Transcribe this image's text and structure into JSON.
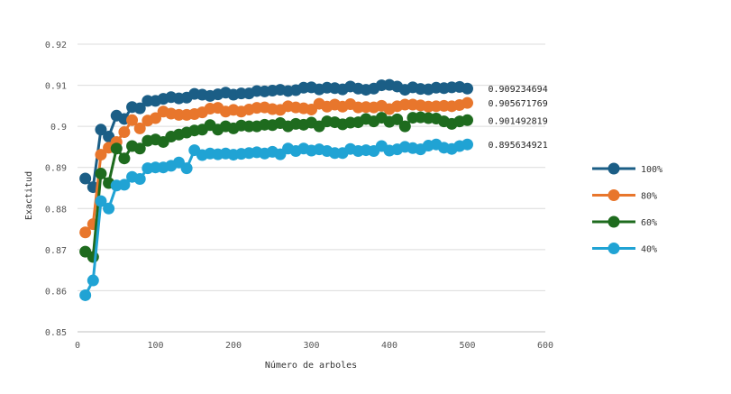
{
  "chart_data": {
    "type": "line",
    "title": "",
    "xlabel": "Número de arboles",
    "ylabel": "Exactitud",
    "xlim": [
      0,
      600
    ],
    "ylim": [
      0.85,
      0.92
    ],
    "x_ticks": [
      "0",
      "100",
      "200",
      "300",
      "400",
      "500",
      "600"
    ],
    "y_ticks": [
      "0.85",
      "0.86",
      "0.87",
      "0.88",
      "0.89",
      "0.9",
      "0.91",
      "0.92"
    ],
    "grid": "horizontal",
    "legend_position": "right",
    "x": [
      10,
      20,
      30,
      40,
      50,
      60,
      70,
      80,
      90,
      100,
      110,
      120,
      130,
      140,
      150,
      160,
      170,
      180,
      190,
      200,
      210,
      220,
      230,
      240,
      250,
      260,
      270,
      280,
      290,
      300,
      310,
      320,
      330,
      340,
      350,
      360,
      370,
      380,
      390,
      400,
      410,
      420,
      430,
      440,
      450,
      460,
      470,
      480,
      490,
      500
    ],
    "series": [
      {
        "name": "100%",
        "color": "#1b5e86",
        "end_label": "0.909234694",
        "values": [
          0.8873,
          0.8852,
          0.8992,
          0.8975,
          0.9026,
          0.9018,
          0.9047,
          0.9044,
          0.9062,
          0.9062,
          0.9067,
          0.9071,
          0.9068,
          0.907,
          0.9079,
          0.9077,
          0.9074,
          0.9078,
          0.9082,
          0.9077,
          0.908,
          0.908,
          0.9086,
          0.9085,
          0.9087,
          0.9089,
          0.9086,
          0.9088,
          0.9094,
          0.9095,
          0.909,
          0.9094,
          0.9093,
          0.909,
          0.9097,
          0.9092,
          0.9089,
          0.9092,
          0.91,
          0.9101,
          0.9097,
          0.9089,
          0.9095,
          0.9091,
          0.909,
          0.9094,
          0.9093,
          0.9095,
          0.9096,
          0.9092
        ]
      },
      {
        "name": "80%",
        "color": "#e8762c",
        "end_label": "0.905671769",
        "values": [
          0.8742,
          0.8762,
          0.8931,
          0.8948,
          0.8962,
          0.8986,
          0.9015,
          0.8995,
          0.9014,
          0.902,
          0.9036,
          0.9031,
          0.9028,
          0.9028,
          0.903,
          0.9034,
          0.9043,
          0.9045,
          0.9036,
          0.904,
          0.9036,
          0.9041,
          0.9045,
          0.9046,
          0.9042,
          0.904,
          0.9049,
          0.9046,
          0.9044,
          0.9041,
          0.9055,
          0.9048,
          0.9053,
          0.9048,
          0.9054,
          0.9046,
          0.9047,
          0.9046,
          0.905,
          0.9042,
          0.9049,
          0.9053,
          0.9053,
          0.9051,
          0.9048,
          0.9049,
          0.905,
          0.9049,
          0.9052,
          0.9057
        ]
      },
      {
        "name": "60%",
        "color": "#1e6b1e",
        "end_label": "0.901492819",
        "values": [
          0.8695,
          0.8682,
          0.8885,
          0.8862,
          0.8946,
          0.8922,
          0.8952,
          0.8946,
          0.8965,
          0.8968,
          0.8962,
          0.8975,
          0.898,
          0.8985,
          0.899,
          0.8992,
          0.9003,
          0.8992,
          0.9,
          0.8995,
          0.9002,
          0.9,
          0.9,
          0.9004,
          0.9003,
          0.9008,
          0.9,
          0.9006,
          0.9004,
          0.9009,
          0.9,
          0.9012,
          0.901,
          0.9005,
          0.9009,
          0.901,
          0.9018,
          0.9012,
          0.9021,
          0.9011,
          0.9017,
          0.9,
          0.9021,
          0.9022,
          0.902,
          0.9019,
          0.9012,
          0.9006,
          0.9012,
          0.9015
        ]
      },
      {
        "name": "40%",
        "color": "#20a3d4",
        "end_label": "0.895634921",
        "values": [
          0.8589,
          0.8625,
          0.8818,
          0.88,
          0.8856,
          0.8858,
          0.8877,
          0.8872,
          0.8898,
          0.89,
          0.89,
          0.8904,
          0.8912,
          0.8898,
          0.8942,
          0.893,
          0.8934,
          0.8932,
          0.8934,
          0.8931,
          0.8933,
          0.8935,
          0.8937,
          0.8934,
          0.8938,
          0.8932,
          0.8946,
          0.894,
          0.8946,
          0.8941,
          0.8944,
          0.894,
          0.8935,
          0.8935,
          0.8945,
          0.894,
          0.8942,
          0.894,
          0.8952,
          0.8941,
          0.8944,
          0.895,
          0.8947,
          0.8944,
          0.8953,
          0.8956,
          0.8948,
          0.8945,
          0.8952,
          0.8956
        ]
      }
    ]
  }
}
